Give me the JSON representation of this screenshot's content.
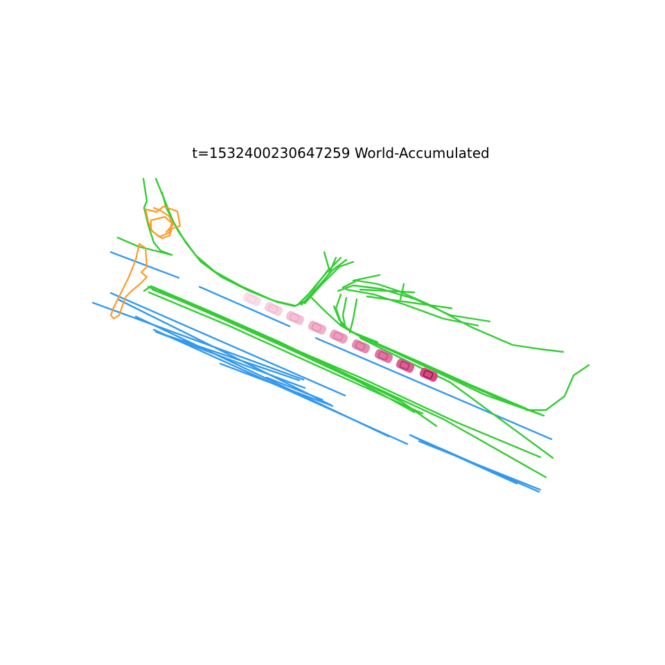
{
  "title": "t=1532400230647259  World-Accumulated",
  "colors": {
    "background": "#ffffff",
    "lane_divider": "#3399ee",
    "road_boundary": "#33cc33",
    "ped_crossing": "#ff9922",
    "ego_vehicle_sequence": [
      "#f8d0e0",
      "#f5c0d6",
      "#f2aecb",
      "#ef9cc0",
      "#eb88b4",
      "#e774a8",
      "#e3609c",
      "#df4d90",
      "#db3a84"
    ]
  },
  "legend": [],
  "layers": [
    "lane_divider",
    "road_boundary",
    "ped_crossing",
    "ego_vehicle"
  ]
}
